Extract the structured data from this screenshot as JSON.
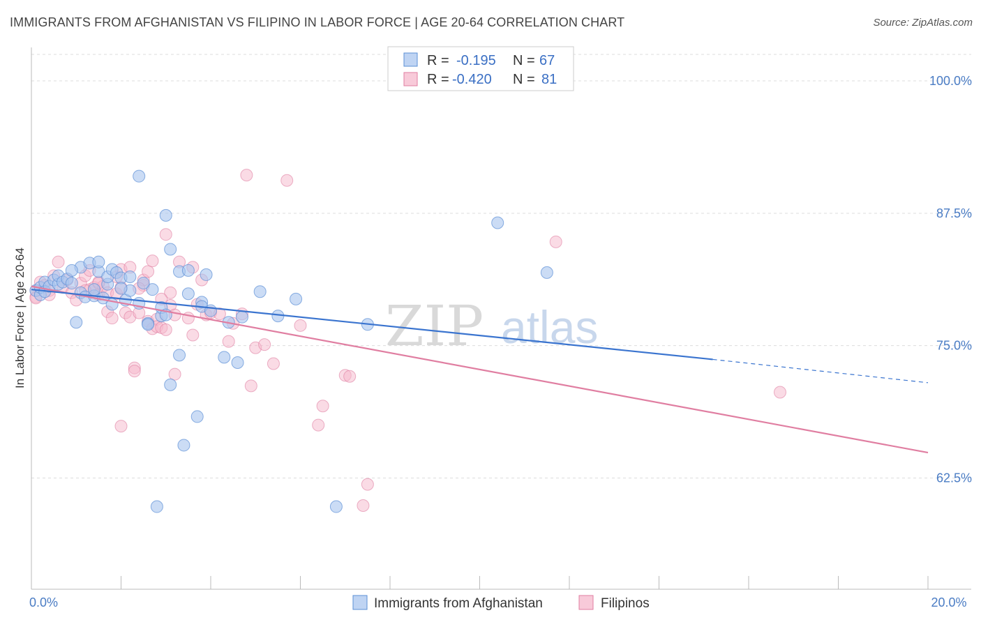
{
  "title": "IMMIGRANTS FROM AFGHANISTAN VS FILIPINO IN LABOR FORCE | AGE 20-64 CORRELATION CHART",
  "source": "Source: ZipAtlas.com",
  "watermark": {
    "zip": "ZIP",
    "atlas": "atlas"
  },
  "chart_data": {
    "type": "scatter",
    "ylabel": "In Labor Force | Age 20-64",
    "xlim": [
      0,
      20
    ],
    "ylim": [
      52,
      102.5
    ],
    "x_tick_labels": [
      {
        "value": 0,
        "label": "0.0%"
      },
      {
        "value": 20,
        "label": "20.0%"
      }
    ],
    "y_tick_labels": [
      {
        "value": 100,
        "label": "100.0%"
      },
      {
        "value": 87.5,
        "label": "87.5%"
      },
      {
        "value": 75,
        "label": "75.0%"
      },
      {
        "value": 62.5,
        "label": "62.5%"
      }
    ],
    "grid": true,
    "legend_position": "top-center",
    "series": [
      {
        "name": "Immigrants from Afghanistan",
        "color": "#5b8fd6",
        "fill": "#a9c5ef",
        "R": "-0.195",
        "N": "67",
        "trend": {
          "x_start": 0,
          "y_start": 80.3,
          "x_end": 15.2,
          "y_end": 73.7,
          "dash_to_x": 20,
          "dash_to_y": 71.5
        },
        "points": [
          [
            0.1,
            80.2
          ],
          [
            0.2,
            79.8
          ],
          [
            0.2,
            80.5
          ],
          [
            0.3,
            81.0
          ],
          [
            0.3,
            80.1
          ],
          [
            0.4,
            80.6
          ],
          [
            0.5,
            81.2
          ],
          [
            0.6,
            80.8
          ],
          [
            0.6,
            81.6
          ],
          [
            0.7,
            81.0
          ],
          [
            0.8,
            81.3
          ],
          [
            0.9,
            80.9
          ],
          [
            1.0,
            77.2
          ],
          [
            1.1,
            82.4
          ],
          [
            1.1,
            80.0
          ],
          [
            1.2,
            79.6
          ],
          [
            1.3,
            82.8
          ],
          [
            1.4,
            79.7
          ],
          [
            1.4,
            80.3
          ],
          [
            1.5,
            82.0
          ],
          [
            1.5,
            82.9
          ],
          [
            1.6,
            79.5
          ],
          [
            1.7,
            80.8
          ],
          [
            1.7,
            81.5
          ],
          [
            1.8,
            82.2
          ],
          [
            1.9,
            81.9
          ],
          [
            2.0,
            81.4
          ],
          [
            2.1,
            79.3
          ],
          [
            2.2,
            80.2
          ],
          [
            2.2,
            81.5
          ],
          [
            2.4,
            79.0
          ],
          [
            2.4,
            91.0
          ],
          [
            2.6,
            77.1
          ],
          [
            2.6,
            77.0
          ],
          [
            2.7,
            80.3
          ],
          [
            2.8,
            59.8
          ],
          [
            2.9,
            77.8
          ],
          [
            2.9,
            78.6
          ],
          [
            3.0,
            77.9
          ],
          [
            3.0,
            87.3
          ],
          [
            3.1,
            71.3
          ],
          [
            3.1,
            84.1
          ],
          [
            3.3,
            74.1
          ],
          [
            3.3,
            82.0
          ],
          [
            3.4,
            65.6
          ],
          [
            3.5,
            82.1
          ],
          [
            3.7,
            68.3
          ],
          [
            3.8,
            79.1
          ],
          [
            3.9,
            81.7
          ],
          [
            3.8,
            78.7
          ],
          [
            4.3,
            73.9
          ],
          [
            4.4,
            77.2
          ],
          [
            4.6,
            73.4
          ],
          [
            4.7,
            77.7
          ],
          [
            5.1,
            80.1
          ],
          [
            5.5,
            77.8
          ],
          [
            5.9,
            79.4
          ],
          [
            6.8,
            59.8
          ],
          [
            7.5,
            77.0
          ],
          [
            10.4,
            86.6
          ],
          [
            11.5,
            81.9
          ],
          [
            2.5,
            80.9
          ],
          [
            1.8,
            78.9
          ],
          [
            3.5,
            79.9
          ],
          [
            0.9,
            82.1
          ],
          [
            2.0,
            80.4
          ],
          [
            4.0,
            78.3
          ]
        ]
      },
      {
        "name": "Filipinos",
        "color": "#e07ea1",
        "fill": "#f5b8cc",
        "R": "-0.420",
        "N": "81",
        "trend": {
          "x_start": 0,
          "y_start": 80.6,
          "x_end": 20,
          "y_end": 64.9
        },
        "points": [
          [
            0.1,
            79.6
          ],
          [
            0.1,
            80.2
          ],
          [
            0.2,
            81.0
          ],
          [
            0.3,
            80.7
          ],
          [
            0.4,
            80.2
          ],
          [
            0.5,
            81.6
          ],
          [
            0.6,
            82.9
          ],
          [
            0.7,
            80.5
          ],
          [
            0.8,
            81.2
          ],
          [
            0.9,
            80.0
          ],
          [
            1.0,
            79.3
          ],
          [
            1.1,
            80.9
          ],
          [
            1.2,
            81.6
          ],
          [
            1.3,
            80.3
          ],
          [
            1.3,
            82.1
          ],
          [
            1.4,
            80.5
          ],
          [
            1.5,
            79.8
          ],
          [
            1.5,
            81.0
          ],
          [
            1.6,
            80.6
          ],
          [
            1.7,
            78.2
          ],
          [
            1.7,
            80.0
          ],
          [
            1.8,
            77.6
          ],
          [
            1.9,
            79.9
          ],
          [
            1.9,
            81.5
          ],
          [
            2.0,
            82.2
          ],
          [
            2.0,
            80.5
          ],
          [
            2.0,
            67.4
          ],
          [
            2.1,
            78.1
          ],
          [
            2.2,
            77.7
          ],
          [
            2.2,
            82.4
          ],
          [
            2.3,
            72.9
          ],
          [
            2.3,
            72.6
          ],
          [
            2.4,
            78.1
          ],
          [
            2.5,
            80.7
          ],
          [
            2.5,
            81.2
          ],
          [
            2.6,
            77.3
          ],
          [
            2.6,
            82.0
          ],
          [
            2.7,
            76.6
          ],
          [
            2.7,
            83.0
          ],
          [
            2.8,
            77.5
          ],
          [
            2.8,
            76.8
          ],
          [
            2.9,
            76.7
          ],
          [
            3.0,
            85.5
          ],
          [
            3.0,
            76.5
          ],
          [
            3.1,
            80.0
          ],
          [
            3.1,
            78.8
          ],
          [
            3.2,
            72.3
          ],
          [
            3.2,
            77.9
          ],
          [
            3.3,
            82.9
          ],
          [
            3.5,
            77.6
          ],
          [
            3.6,
            82.4
          ],
          [
            3.6,
            76.0
          ],
          [
            3.8,
            81.2
          ],
          [
            3.9,
            77.9
          ],
          [
            4.0,
            78.1
          ],
          [
            4.2,
            78.0
          ],
          [
            4.4,
            75.4
          ],
          [
            4.5,
            77.1
          ],
          [
            4.7,
            78.0
          ],
          [
            4.8,
            91.1
          ],
          [
            4.9,
            71.2
          ],
          [
            5.0,
            74.8
          ],
          [
            5.2,
            75.1
          ],
          [
            5.4,
            73.3
          ],
          [
            5.7,
            90.6
          ],
          [
            6.0,
            76.9
          ],
          [
            6.4,
            67.5
          ],
          [
            6.5,
            69.3
          ],
          [
            7.0,
            72.2
          ],
          [
            7.1,
            72.1
          ],
          [
            7.5,
            61.9
          ],
          [
            7.4,
            59.9
          ],
          [
            11.7,
            84.8
          ],
          [
            16.7,
            70.6
          ],
          [
            0.1,
            79.5
          ],
          [
            0.4,
            79.8
          ],
          [
            1.2,
            80.2
          ],
          [
            2.9,
            79.4
          ],
          [
            3.7,
            78.9
          ],
          [
            1.5,
            80.9
          ],
          [
            2.4,
            80.4
          ]
        ]
      }
    ]
  }
}
